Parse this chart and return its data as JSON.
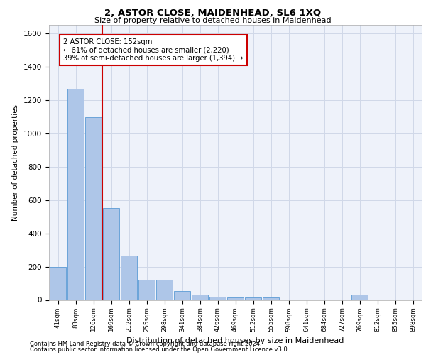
{
  "title1": "2, ASTOR CLOSE, MAIDENHEAD, SL6 1XQ",
  "title2": "Size of property relative to detached houses in Maidenhead",
  "xlabel": "Distribution of detached houses by size in Maidenhead",
  "ylabel": "Number of detached properties",
  "categories": [
    "41sqm",
    "83sqm",
    "126sqm",
    "169sqm",
    "212sqm",
    "255sqm",
    "298sqm",
    "341sqm",
    "384sqm",
    "426sqm",
    "469sqm",
    "512sqm",
    "555sqm",
    "598sqm",
    "641sqm",
    "684sqm",
    "727sqm",
    "769sqm",
    "812sqm",
    "855sqm",
    "898sqm"
  ],
  "values": [
    197,
    1265,
    1095,
    550,
    265,
    120,
    120,
    55,
    30,
    20,
    13,
    13,
    13,
    0,
    0,
    0,
    0,
    30,
    0,
    0,
    0
  ],
  "bar_color": "#aec6e8",
  "bar_edge_color": "#5b9bd5",
  "vline_color": "#cc0000",
  "annotation_text": "2 ASTOR CLOSE: 152sqm\n← 61% of detached houses are smaller (2,220)\n39% of semi-detached houses are larger (1,394) →",
  "annotation_box_color": "#ffffff",
  "annotation_box_edge": "#cc0000",
  "ylim": [
    0,
    1650
  ],
  "yticks": [
    0,
    200,
    400,
    600,
    800,
    1000,
    1200,
    1400,
    1600
  ],
  "grid_color": "#d0d8e8",
  "bg_color": "#eef2fa",
  "footer1": "Contains HM Land Registry data © Crown copyright and database right 2024.",
  "footer2": "Contains public sector information licensed under the Open Government Licence v3.0."
}
